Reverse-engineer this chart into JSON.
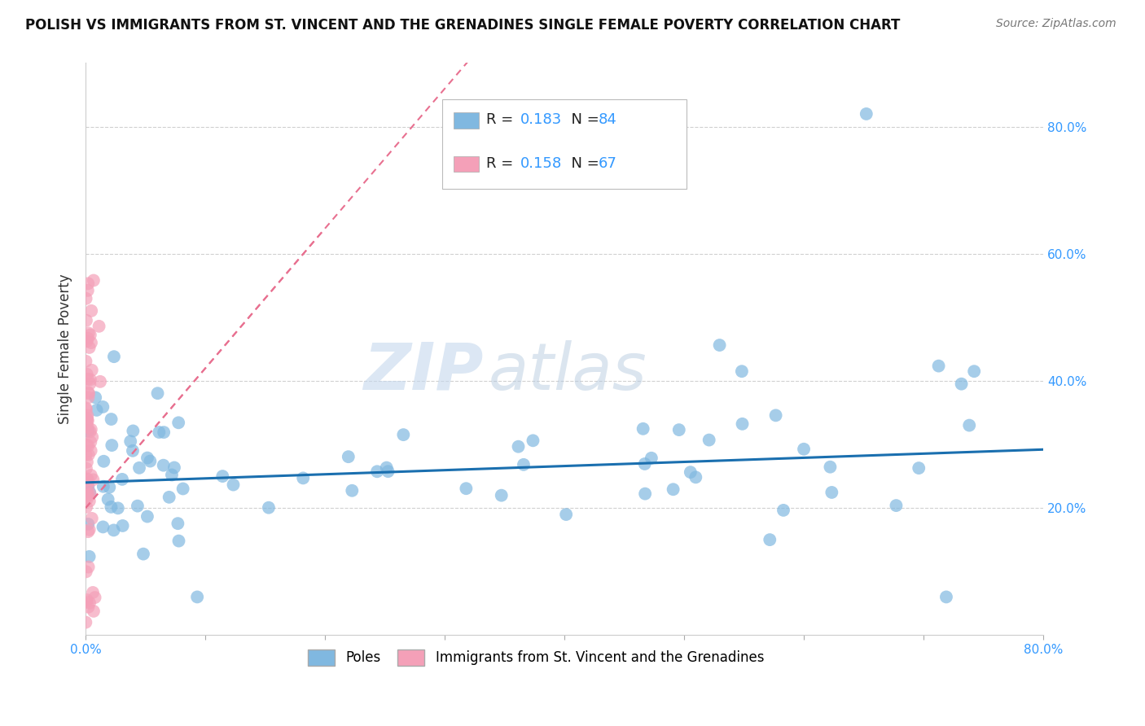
{
  "title": "POLISH VS IMMIGRANTS FROM ST. VINCENT AND THE GRENADINES SINGLE FEMALE POVERTY CORRELATION CHART",
  "source": "Source: ZipAtlas.com",
  "ylabel": "Single Female Poverty",
  "xlim": [
    0,
    0.8
  ],
  "ylim": [
    0,
    0.9
  ],
  "ytick_positions": [
    0.2,
    0.4,
    0.6,
    0.8
  ],
  "ytick_labels": [
    "20.0%",
    "40.0%",
    "60.0%",
    "80.0%"
  ],
  "blue_color": "#80b8e0",
  "pink_color": "#f4a0b8",
  "blue_line_color": "#1a6faf",
  "pink_line_color": "#e87090",
  "watermark_zip": "ZIP",
  "watermark_atlas": "atlas",
  "legend_label_blue": "Poles",
  "legend_label_pink": "Immigrants from St. Vincent and the Grenadines",
  "blue_R": "0.183",
  "blue_N": "84",
  "pink_R": "0.158",
  "pink_N": "67",
  "blue_intercept": 0.24,
  "blue_slope": 0.065,
  "pink_intercept": 0.2,
  "pink_slope": 2.2,
  "title_fontsize": 12,
  "tick_color": "#3399ff",
  "text_color": "#1a1a2e",
  "background_color": "#ffffff",
  "grid_color": "#d0d0d0"
}
